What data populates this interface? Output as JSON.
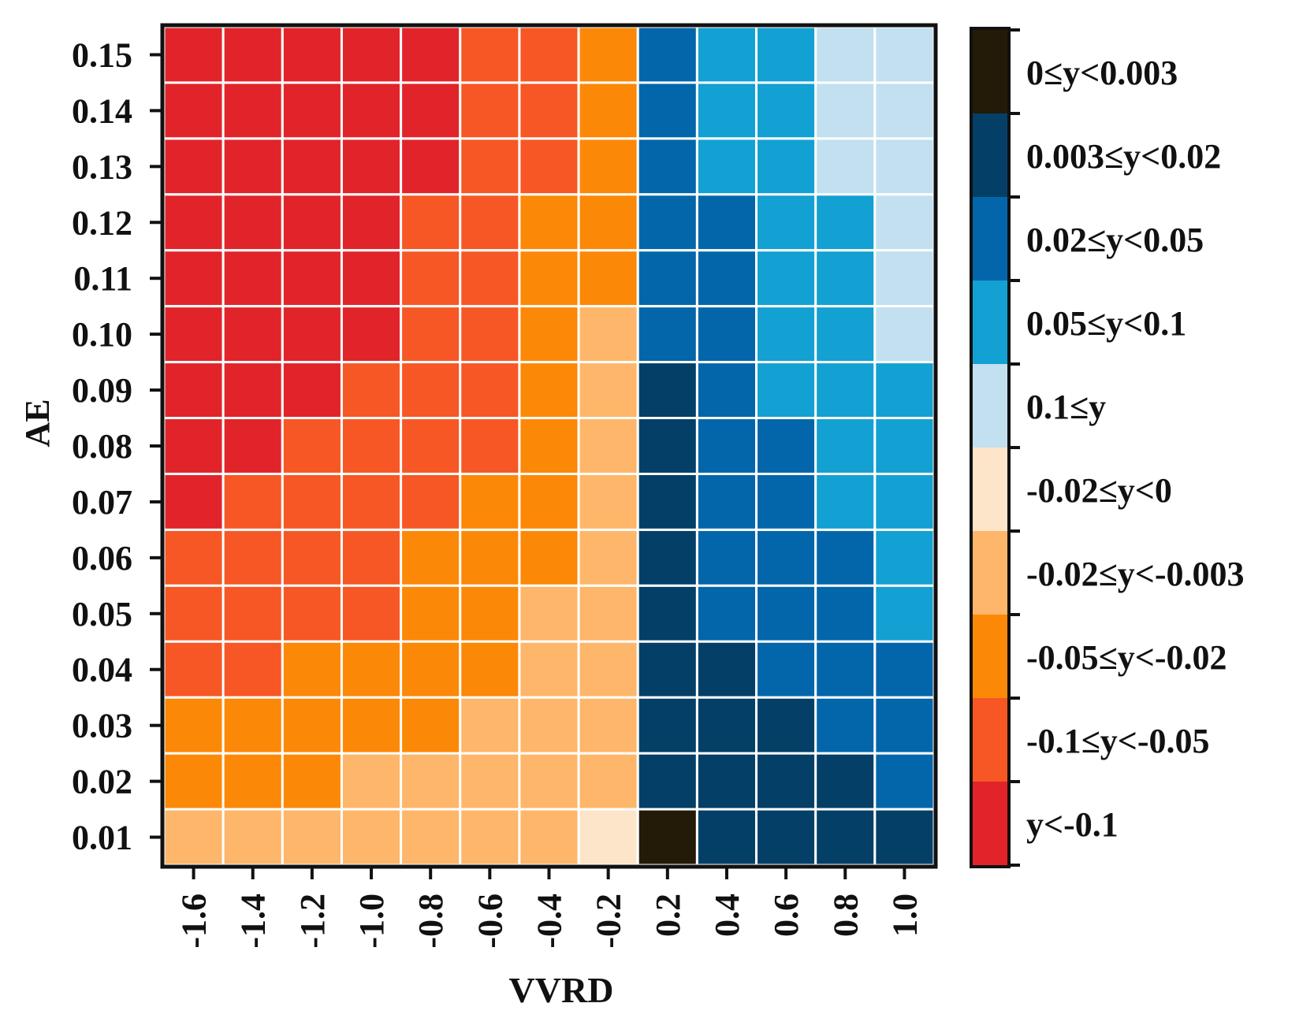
{
  "chart_data": {
    "type": "heatmap",
    "xlabel": "VVRD",
    "ylabel": "AE",
    "x": [
      "-1.6",
      "-1.4",
      "-1.2",
      "-1.0",
      "-0.8",
      "-0.6",
      "-0.4",
      "-0.2",
      "0.2",
      "0.4",
      "0.6",
      "0.8",
      "1.0"
    ],
    "y": [
      "0.15",
      "0.14",
      "0.13",
      "0.12",
      "0.11",
      "0.10",
      "0.09",
      "0.08",
      "0.07",
      "0.06",
      "0.05",
      "0.04",
      "0.03",
      "0.02",
      "0.01"
    ],
    "grid": true,
    "legend_position": "right",
    "legend": [
      {
        "label": "0≤y<0.003",
        "color": "#231a08"
      },
      {
        "label": "0.003≤y<0.02",
        "color": "#033f66"
      },
      {
        "label": "0.02≤y<0.05",
        "color": "#0466aa"
      },
      {
        "label": "0.05≤y<0.1",
        "color": "#13a0d2"
      },
      {
        "label": "0.1≤y",
        "color": "#c2e0ef"
      },
      {
        "label": "-0.02≤y<0",
        "color": "#fde5c9"
      },
      {
        "label": "-0.02≤y<-0.003",
        "color": "#fdb66a"
      },
      {
        "label": "-0.05≤y<-0.02",
        "color": "#fc8807"
      },
      {
        "label": "-0.1≤y<-0.05",
        "color": "#f65724"
      },
      {
        "label": "y<-0.1",
        "color": "#e1242a"
      }
    ],
    "cells": [
      [
        9,
        9,
        9,
        9,
        9,
        8,
        8,
        7,
        2,
        3,
        3,
        4,
        4
      ],
      [
        9,
        9,
        9,
        9,
        9,
        8,
        8,
        7,
        2,
        3,
        3,
        4,
        4
      ],
      [
        9,
        9,
        9,
        9,
        9,
        8,
        8,
        7,
        2,
        3,
        3,
        4,
        4
      ],
      [
        9,
        9,
        9,
        9,
        8,
        8,
        7,
        7,
        2,
        2,
        3,
        3,
        4
      ],
      [
        9,
        9,
        9,
        9,
        8,
        8,
        7,
        7,
        2,
        2,
        3,
        3,
        4
      ],
      [
        9,
        9,
        9,
        9,
        8,
        8,
        7,
        6,
        2,
        2,
        3,
        3,
        4
      ],
      [
        9,
        9,
        9,
        8,
        8,
        8,
        7,
        6,
        1,
        2,
        3,
        3,
        3
      ],
      [
        9,
        9,
        8,
        8,
        8,
        8,
        7,
        6,
        1,
        2,
        2,
        3,
        3
      ],
      [
        9,
        8,
        8,
        8,
        8,
        7,
        7,
        6,
        1,
        2,
        2,
        3,
        3
      ],
      [
        8,
        8,
        8,
        8,
        7,
        7,
        7,
        6,
        1,
        2,
        2,
        2,
        3
      ],
      [
        8,
        8,
        8,
        8,
        7,
        7,
        6,
        6,
        1,
        2,
        2,
        2,
        3
      ],
      [
        8,
        8,
        7,
        7,
        7,
        7,
        6,
        6,
        1,
        1,
        2,
        2,
        2
      ],
      [
        7,
        7,
        7,
        7,
        7,
        6,
        6,
        6,
        1,
        1,
        1,
        2,
        2
      ],
      [
        7,
        7,
        7,
        6,
        6,
        6,
        6,
        6,
        1,
        1,
        1,
        1,
        2
      ],
      [
        6,
        6,
        6,
        6,
        6,
        6,
        6,
        5,
        0,
        1,
        1,
        1,
        1
      ]
    ]
  }
}
